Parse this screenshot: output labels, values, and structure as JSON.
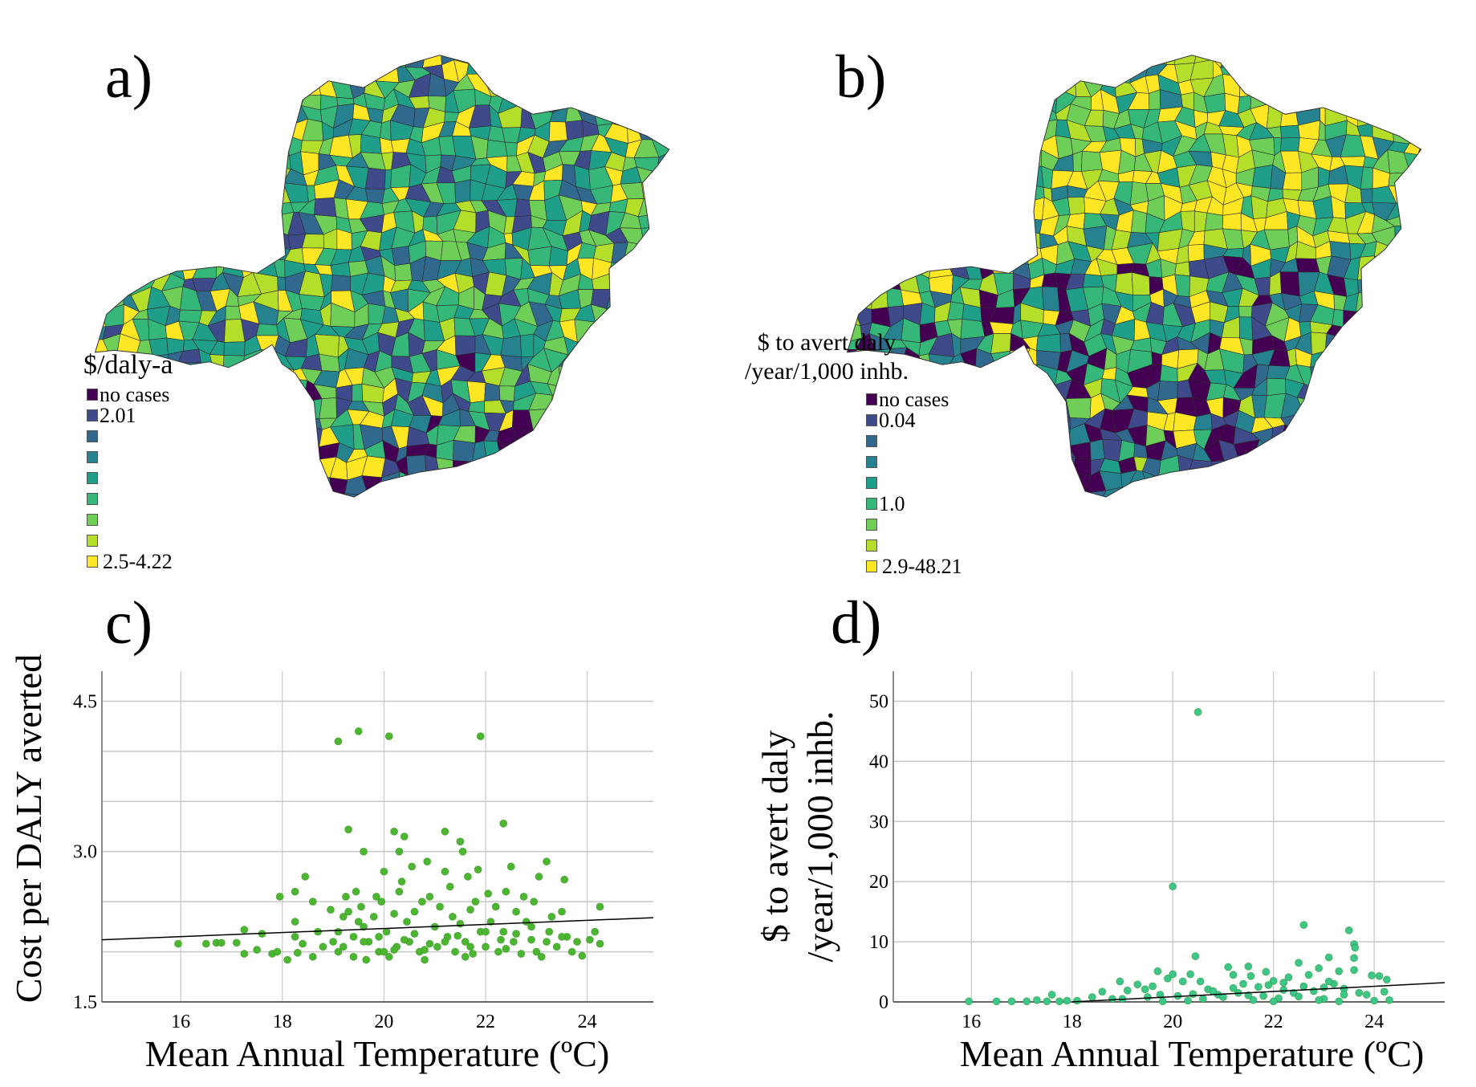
{
  "panels": {
    "a": {
      "label": "a)",
      "legend_title": "$/daly-a",
      "legend_labels": [
        "no cases",
        "2.01",
        "",
        "",
        "",
        "",
        "",
        "",
        "2.5-4.22"
      ]
    },
    "b": {
      "label": "b)",
      "legend_title_line1": "$ to avert daly",
      "legend_title_line2": "/year/1,000 inhb.",
      "legend_labels": [
        "no cases",
        "0.04",
        "",
        "",
        "",
        "1.0",
        "",
        "",
        "2.9-48.21"
      ]
    },
    "c": {
      "label": "c)"
    },
    "d": {
      "label": "d)"
    }
  },
  "legend_colors": [
    "#440154",
    "#3e4a89",
    "#31688e",
    "#26828e",
    "#1f9e89",
    "#35b779",
    "#6ece58",
    "#b5de2b",
    "#fde725"
  ],
  "chart_data": [
    {
      "type": "scatter",
      "panel": "c",
      "xlabel": "Mean Annual Temperature (ºC)",
      "ylabel": "Cost per DALY averted",
      "xlim": [
        14.45,
        25.3
      ],
      "ylim": [
        1.5,
        4.8
      ],
      "xticks": [
        16,
        18,
        20,
        22,
        24
      ],
      "yticks": [
        1.5,
        3.0,
        4.5
      ],
      "ygrid": [
        1.5,
        2.0,
        2.5,
        3.0,
        3.5,
        4.0,
        4.5
      ],
      "grid": true,
      "point_color": "#4cb631",
      "trend_line": {
        "x": [
          14.45,
          25.3
        ],
        "y": [
          2.12,
          2.34
        ]
      },
      "points": [
        [
          19.1,
          4.1
        ],
        [
          19.5,
          4.2
        ],
        [
          20.1,
          4.15
        ],
        [
          21.9,
          4.15
        ],
        [
          19.3,
          3.22
        ],
        [
          20.2,
          3.2
        ],
        [
          21.2,
          3.2
        ],
        [
          22.35,
          3.28
        ],
        [
          20.4,
          3.15
        ],
        [
          21.5,
          3.1
        ],
        [
          19.6,
          3.0
        ],
        [
          20.3,
          3.0
        ],
        [
          21.55,
          3.0
        ],
        [
          15.95,
          2.08
        ],
        [
          16.5,
          2.08
        ],
        [
          16.7,
          2.09
        ],
        [
          16.8,
          2.09
        ],
        [
          17.1,
          2.09
        ],
        [
          17.25,
          2.22
        ],
        [
          17.25,
          1.98
        ],
        [
          17.5,
          2.02
        ],
        [
          17.6,
          2.18
        ],
        [
          17.8,
          1.98
        ],
        [
          17.9,
          2.0
        ],
        [
          17.95,
          2.55
        ],
        [
          18.1,
          1.92
        ],
        [
          18.25,
          2.6
        ],
        [
          18.25,
          2.3
        ],
        [
          18.25,
          2.15
        ],
        [
          18.3,
          1.99
        ],
        [
          18.4,
          2.08
        ],
        [
          18.45,
          2.75
        ],
        [
          18.6,
          2.5
        ],
        [
          18.6,
          1.95
        ],
        [
          18.7,
          2.2
        ],
        [
          18.8,
          2.05
        ],
        [
          18.95,
          2.42
        ],
        [
          19.0,
          2.1
        ],
        [
          19.1,
          2.2
        ],
        [
          19.1,
          2.0
        ],
        [
          19.2,
          2.35
        ],
        [
          19.25,
          2.55
        ],
        [
          19.3,
          2.4
        ],
        [
          19.4,
          2.15
        ],
        [
          19.45,
          2.6
        ],
        [
          19.5,
          2.3
        ],
        [
          19.55,
          2.45
        ],
        [
          19.6,
          2.25
        ],
        [
          19.65,
          1.92
        ],
        [
          19.7,
          2.1
        ],
        [
          19.8,
          2.35
        ],
        [
          19.85,
          2.55
        ],
        [
          19.9,
          2.0
        ],
        [
          19.95,
          2.5
        ],
        [
          20.0,
          2.8
        ],
        [
          20.05,
          2.2
        ],
        [
          20.1,
          1.95
        ],
        [
          20.2,
          2.38
        ],
        [
          20.25,
          2.05
        ],
        [
          20.3,
          2.6
        ],
        [
          20.35,
          2.7
        ],
        [
          20.45,
          2.3
        ],
        [
          20.5,
          2.1
        ],
        [
          20.55,
          2.85
        ],
        [
          20.6,
          2.4
        ],
        [
          20.7,
          2.0
        ],
        [
          20.75,
          2.5
        ],
        [
          20.8,
          1.92
        ],
        [
          20.85,
          2.9
        ],
        [
          20.9,
          2.55
        ],
        [
          21.0,
          2.25
        ],
        [
          21.05,
          2.05
        ],
        [
          21.1,
          2.45
        ],
        [
          21.2,
          2.8
        ],
        [
          21.25,
          2.15
        ],
        [
          21.3,
          2.65
        ],
        [
          21.35,
          2.35
        ],
        [
          21.4,
          2.0
        ],
        [
          21.5,
          2.28
        ],
        [
          21.6,
          2.1
        ],
        [
          21.65,
          2.75
        ],
        [
          21.7,
          2.42
        ],
        [
          21.75,
          1.98
        ],
        [
          21.8,
          2.5
        ],
        [
          21.85,
          2.82
        ],
        [
          21.9,
          2.2
        ],
        [
          22.0,
          2.05
        ],
        [
          22.05,
          2.58
        ],
        [
          22.1,
          2.3
        ],
        [
          22.2,
          2.45
        ],
        [
          22.25,
          2.0
        ],
        [
          22.35,
          2.2
        ],
        [
          22.4,
          2.6
        ],
        [
          22.5,
          2.85
        ],
        [
          22.55,
          2.1
        ],
        [
          22.6,
          2.4
        ],
        [
          22.7,
          1.98
        ],
        [
          22.75,
          2.55
        ],
        [
          22.8,
          2.3
        ],
        [
          22.9,
          2.12
        ],
        [
          22.95,
          2.5
        ],
        [
          23.05,
          2.75
        ],
        [
          23.1,
          1.95
        ],
        [
          23.2,
          2.9
        ],
        [
          23.25,
          2.2
        ],
        [
          23.3,
          2.35
        ],
        [
          23.4,
          2.05
        ],
        [
          23.5,
          2.4
        ],
        [
          23.55,
          2.72
        ],
        [
          23.6,
          2.15
        ],
        [
          23.7,
          2.0
        ],
        [
          23.8,
          2.1
        ],
        [
          23.9,
          1.96
        ],
        [
          24.05,
          2.12
        ],
        [
          24.15,
          2.2
        ],
        [
          24.25,
          2.45
        ],
        [
          24.25,
          2.08
        ],
        [
          19.2,
          2.05
        ],
        [
          19.6,
          2.1
        ],
        [
          19.9,
          2.15
        ],
        [
          20.2,
          2.02
        ],
        [
          20.4,
          2.12
        ],
        [
          20.6,
          2.18
        ],
        [
          20.9,
          2.08
        ],
        [
          21.2,
          2.1
        ],
        [
          21.45,
          2.16
        ],
        [
          21.7,
          2.05
        ],
        [
          22.0,
          2.2
        ],
        [
          22.3,
          2.12
        ],
        [
          22.6,
          2.18
        ],
        [
          22.9,
          2.25
        ],
        [
          23.2,
          2.1
        ],
        [
          23.5,
          2.15
        ],
        [
          19.4,
          1.95
        ],
        [
          20.0,
          2.0
        ],
        [
          20.8,
          2.02
        ],
        [
          21.6,
          1.95
        ],
        [
          22.4,
          2.03
        ],
        [
          23.0,
          2.0
        ]
      ]
    },
    {
      "type": "scatter",
      "panel": "d",
      "xlabel": "Mean Annual Temperature (ºC)",
      "ylabel": [
        "$ to avert daly",
        "/year/1,000 inhb."
      ],
      "xlim": [
        14.45,
        25.4
      ],
      "ylim": [
        0,
        55
      ],
      "xticks": [
        16,
        18,
        20,
        22,
        24
      ],
      "yticks": [
        0,
        10,
        20,
        30,
        40,
        50
      ],
      "grid": true,
      "point_color": "#3cc68a",
      "trend_line": {
        "x": [
          18.0,
          25.4
        ],
        "y": [
          0,
          3.2
        ]
      },
      "points": [
        [
          15.95,
          0.1
        ],
        [
          16.5,
          0.1
        ],
        [
          16.8,
          0.1
        ],
        [
          17.1,
          0.1
        ],
        [
          17.3,
          0.3
        ],
        [
          17.5,
          0.1
        ],
        [
          17.6,
          1.2
        ],
        [
          17.75,
          0.1
        ],
        [
          17.9,
          0.2
        ],
        [
          18.1,
          0.2
        ],
        [
          18.4,
          0.8
        ],
        [
          18.6,
          1.7
        ],
        [
          18.8,
          0.5
        ],
        [
          18.95,
          3.4
        ],
        [
          19.1,
          1.9
        ],
        [
          19.3,
          2.9
        ],
        [
          19.45,
          2.1
        ],
        [
          19.6,
          2.6
        ],
        [
          19.7,
          5.1
        ],
        [
          19.75,
          1.2
        ],
        [
          19.9,
          3.9
        ],
        [
          20.0,
          19.2
        ],
        [
          20.0,
          4.6
        ],
        [
          20.2,
          3.4
        ],
        [
          20.35,
          4.6
        ],
        [
          20.45,
          7.6
        ],
        [
          20.5,
          48.2
        ],
        [
          20.55,
          3.4
        ],
        [
          20.7,
          2.1
        ],
        [
          20.9,
          1.2
        ],
        [
          21.1,
          5.8
        ],
        [
          21.2,
          4.5
        ],
        [
          21.4,
          3.0
        ],
        [
          21.5,
          5.9
        ],
        [
          21.55,
          4.3
        ],
        [
          21.7,
          2.5
        ],
        [
          21.85,
          5.0
        ],
        [
          22.0,
          3.5
        ],
        [
          22.2,
          2.0
        ],
        [
          22.3,
          4.1
        ],
        [
          22.5,
          6.5
        ],
        [
          22.6,
          12.8
        ],
        [
          22.7,
          4.5
        ],
        [
          22.9,
          5.6
        ],
        [
          23.1,
          7.4
        ],
        [
          23.2,
          3.0
        ],
        [
          23.3,
          5.1
        ],
        [
          23.5,
          11.9
        ],
        [
          23.6,
          9.6
        ],
        [
          23.62,
          9.0
        ],
        [
          23.6,
          7.3
        ],
        [
          23.6,
          5.3
        ],
        [
          23.7,
          1.5
        ],
        [
          23.85,
          1.2
        ],
        [
          23.95,
          4.4
        ],
        [
          24.1,
          4.3
        ],
        [
          24.2,
          1.7
        ],
        [
          24.25,
          3.7
        ],
        [
          24.3,
          0.3
        ],
        [
          19.0,
          0.5
        ],
        [
          19.5,
          0.8
        ],
        [
          20.1,
          1.0
        ],
        [
          20.6,
          0.5
        ],
        [
          21.0,
          0.8
        ],
        [
          21.3,
          1.5
        ],
        [
          21.8,
          1.0
        ],
        [
          22.1,
          0.6
        ],
        [
          22.4,
          1.5
        ],
        [
          22.8,
          1.8
        ],
        [
          23.0,
          0.5
        ],
        [
          23.4,
          2.2
        ],
        [
          24.0,
          0.2
        ],
        [
          20.3,
          0.2
        ],
        [
          21.6,
          0.3
        ],
        [
          22.9,
          0.3
        ],
        [
          19.8,
          0.1
        ],
        [
          22.0,
          0.1
        ],
        [
          23.3,
          0.1
        ],
        [
          20.8,
          1.8
        ],
        [
          21.2,
          2.3
        ],
        [
          21.9,
          2.8
        ],
        [
          22.2,
          3.2
        ],
        [
          22.6,
          2.6
        ],
        [
          23.1,
          3.4
        ],
        [
          23.4,
          1.2
        ],
        [
          20.4,
          1.3
        ],
        [
          21.5,
          1.1
        ],
        [
          22.5,
          0.9
        ],
        [
          23.0,
          2.4
        ]
      ]
    }
  ]
}
